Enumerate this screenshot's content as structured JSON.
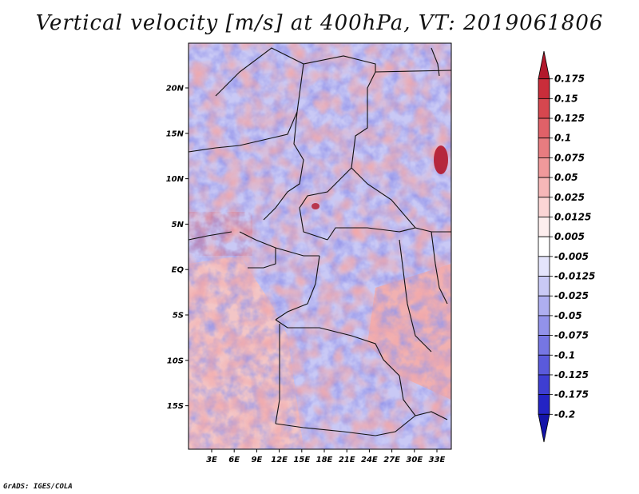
{
  "title": "Vertical velocity [m/s] at 400hPa, VT: 2019061806",
  "credit": "GrADS: IGES/COLA",
  "map": {
    "lat_labels": [
      "20N",
      "15N",
      "10N",
      "5N",
      "EQ",
      "5S",
      "10S",
      "15S"
    ],
    "lon_labels": [
      "3E",
      "6E",
      "9E",
      "12E",
      "15E",
      "18E",
      "21E",
      "24E",
      "27E",
      "30E",
      "33E"
    ],
    "field": "vertical velocity",
    "units": "m/s",
    "level": "400hPa",
    "valid_time": "2019061806"
  },
  "colorbar": {
    "labels": [
      "0.175",
      "0.15",
      "0.125",
      "0.1",
      "0.075",
      "0.05",
      "0.025",
      "0.0125",
      "0.005",
      "-0.005",
      "-0.0125",
      "-0.025",
      "-0.05",
      "-0.075",
      "-0.1",
      "-0.125",
      "-0.175",
      "-0.2"
    ],
    "colors": [
      "#b2182b",
      "#c92d3a",
      "#d6474f",
      "#e06168",
      "#e87c80",
      "#f0999b",
      "#f6b7b8",
      "#fbd5d5",
      "#fdeeee",
      "#ffffff",
      "#e4e4fb",
      "#c9c9f5",
      "#aeaef0",
      "#9292ea",
      "#7676e3",
      "#5a5adb",
      "#3e3ed2",
      "#2323c4",
      "#1414a8"
    ]
  }
}
